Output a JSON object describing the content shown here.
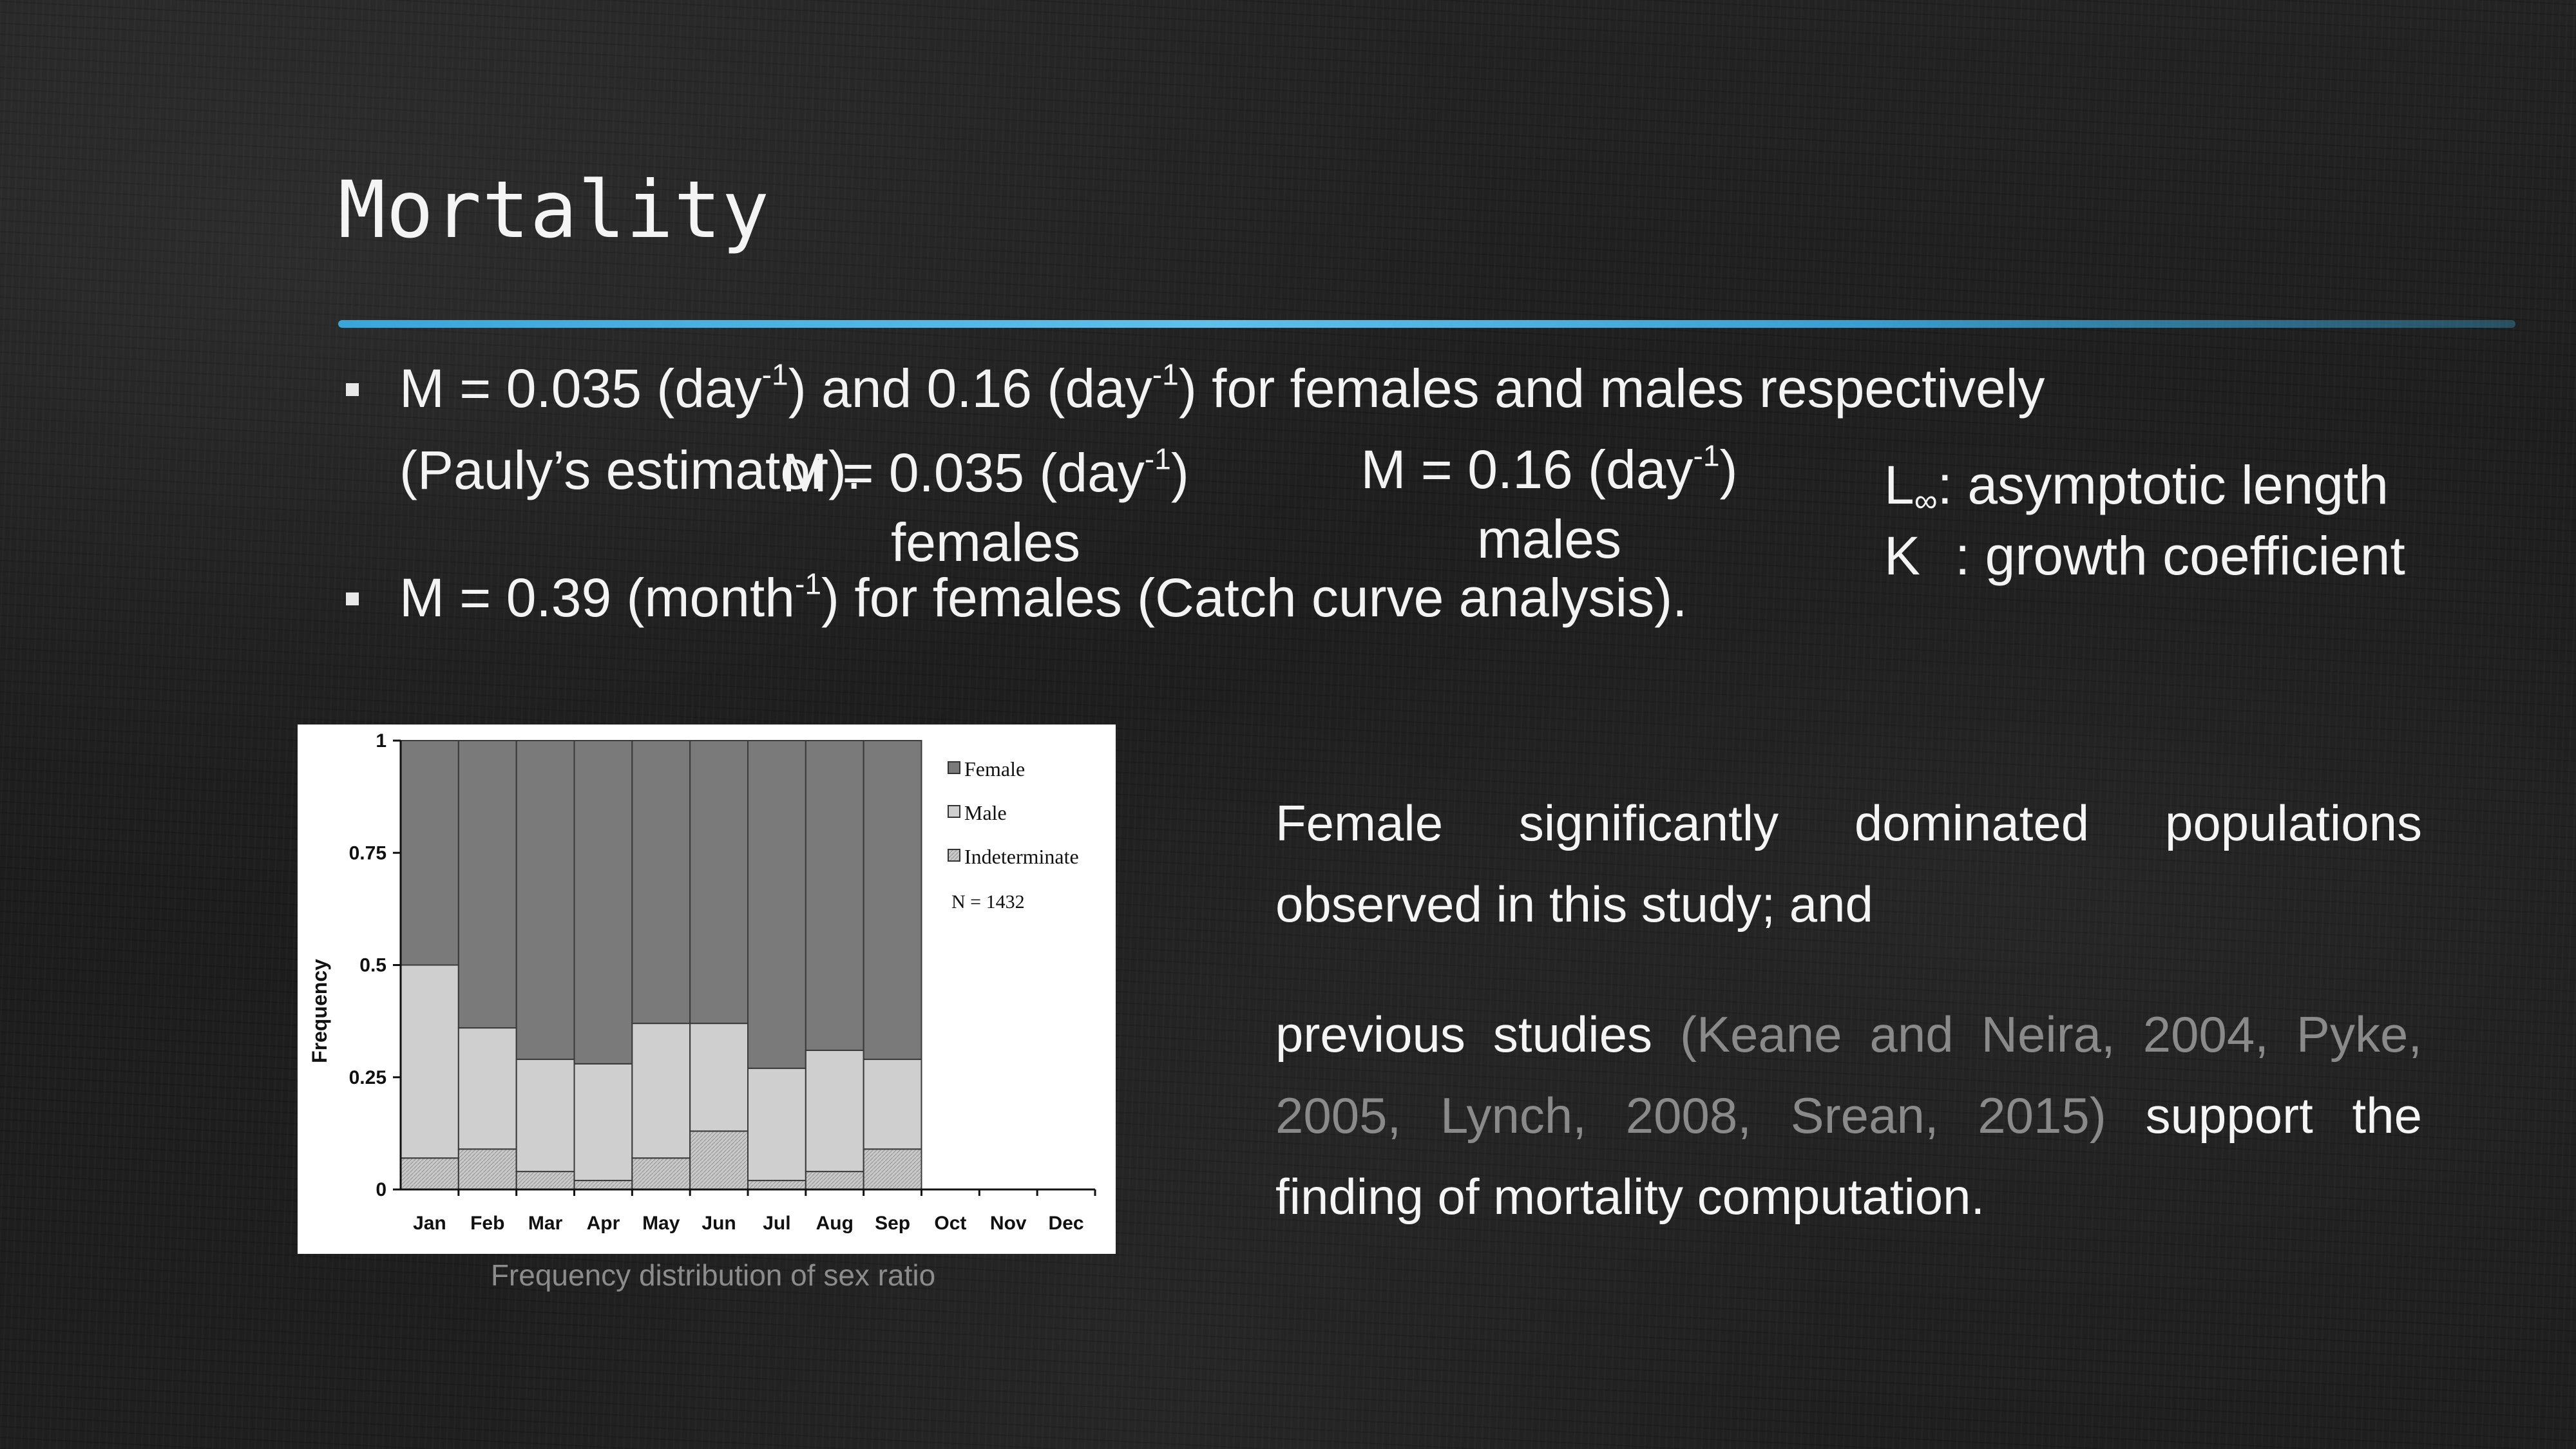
{
  "slide": {
    "title": "Mortality",
    "bullet1": {
      "line1_a": "M = 0.035 (day",
      "line1_sup1": "-1",
      "line1_b": ") and 0.16 (day",
      "line1_sup2": "-1",
      "line1_c": ") for females and males respectively",
      "line2": "(Pauly’s estimator)."
    },
    "overlay_female": {
      "value_a": "M = 0.035 (day",
      "value_sup": "-1",
      "value_b": ")",
      "label": "females"
    },
    "overlay_male": {
      "value_a": "M = 0.16 (day",
      "value_sup": "-1",
      "value_b": ")",
      "label": "males"
    },
    "legend_linf": {
      "symbol": "L",
      "subscript": "∞",
      "text": ": asymptotic length"
    },
    "legend_k": {
      "symbol": "K",
      "text": ": growth coefficient"
    },
    "bullet2": {
      "text_a": "M = 0.39 (month",
      "text_sup": "-1",
      "text_b": ") for females (Catch curve analysis)."
    },
    "para1": "Female significantly dominated populations observed in this study; and",
    "para2": {
      "lead": "previous studies",
      "citation": "(Keane and Neira, 2004, Pyke, 2005, Lynch, 2008, Srean, 2015)",
      "tail": "support the finding of mortality computation."
    },
    "chart_caption": "Frequency distribution of sex ratio",
    "colors": {
      "accent_rule": "#3aa6d8",
      "female": "#7a7a7a",
      "male": "#cfcfcf",
      "indeterminate": "#bdbdbd"
    }
  },
  "chart_data": {
    "type": "bar",
    "stacked": true,
    "ylabel": "Frequency",
    "xlabel": "",
    "ylim": [
      0,
      1
    ],
    "yticks": [
      "0",
      "0.25",
      "0.5",
      "0.75",
      "1"
    ],
    "ytick_values": [
      0,
      0.25,
      0.5,
      0.75,
      1
    ],
    "categories": [
      "Jan",
      "Feb",
      "Mar",
      "Apr",
      "May",
      "Jun",
      "Jul",
      "Aug",
      "Sep",
      "Oct",
      "Nov",
      "Dec"
    ],
    "series": [
      {
        "name": "Indeterminate",
        "values": [
          0.07,
          0.09,
          0.04,
          0.02,
          0.07,
          0.13,
          0.02,
          0.04,
          0.09,
          null,
          null,
          null
        ]
      },
      {
        "name": "Male",
        "values": [
          0.43,
          0.27,
          0.25,
          0.26,
          0.3,
          0.24,
          0.25,
          0.27,
          0.2,
          null,
          null,
          null
        ]
      },
      {
        "name": "Female",
        "values": [
          0.5,
          0.64,
          0.71,
          0.72,
          0.63,
          0.63,
          0.73,
          0.69,
          0.71,
          null,
          null,
          null
        ]
      }
    ],
    "annotation": "N = 1432",
    "legend_position": "top-right",
    "grid": false
  }
}
